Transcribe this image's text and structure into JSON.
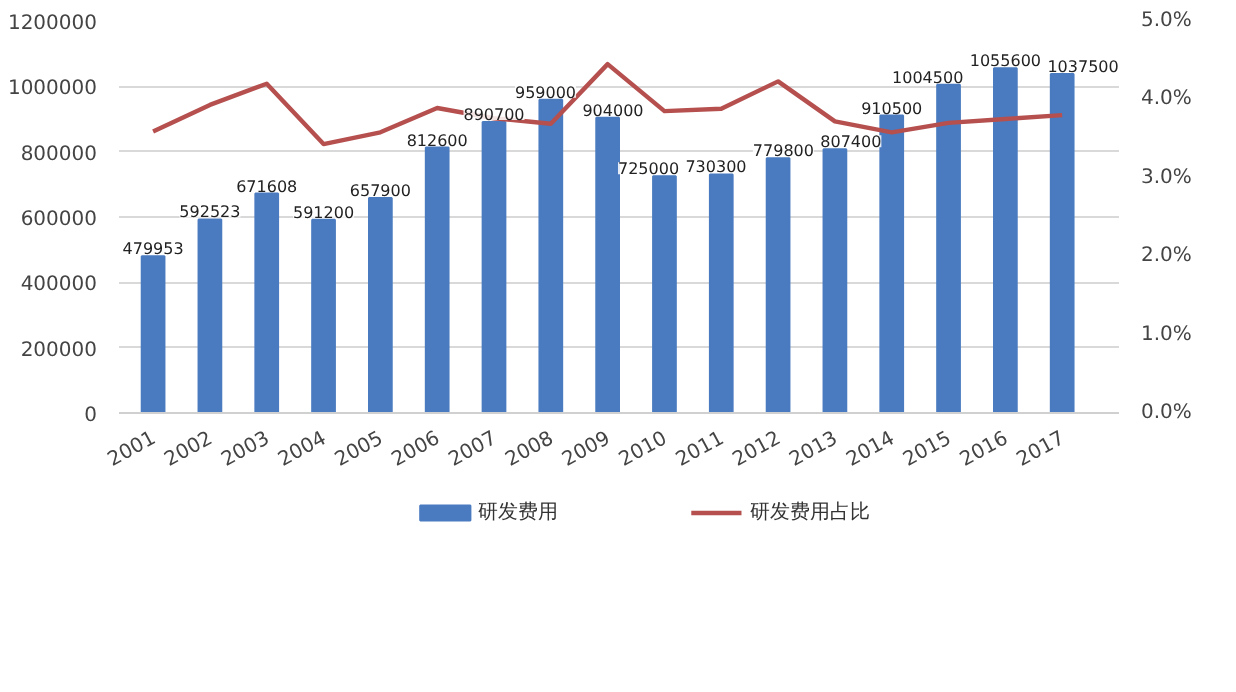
{
  "chart_data": {
    "type": "bar",
    "categories": [
      "2001",
      "2002",
      "2003",
      "2004",
      "2005",
      "2006",
      "2007",
      "2008",
      "2009",
      "2010",
      "2011",
      "2012",
      "2013",
      "2014",
      "2015",
      "2016",
      "2017"
    ],
    "series": [
      {
        "name": "研发费用",
        "color": "#4a7bc0",
        "values": [
          479953,
          592523,
          671608,
          591200,
          657900,
          812600,
          890700,
          959000,
          904000,
          725000,
          730300,
          779800,
          807400,
          910500,
          1004500,
          1055600,
          1037500
        ],
        "value_labels": [
          "479953",
          "592523",
          "671608",
          "591200",
          "657900",
          "812600",
          "890700",
          "959000",
          "904000",
          "725000",
          "730300",
          "779800",
          "807400",
          "910500",
          "1004500",
          "1055600",
          "1037500"
        ]
      },
      {
        "name": "研发费用占比",
        "type": "line",
        "axis": "y2",
        "color": "#b5504f",
        "values": [
          3.59,
          3.93,
          4.2,
          3.43,
          3.58,
          3.89,
          3.76,
          3.69,
          4.45,
          3.85,
          3.88,
          4.23,
          3.72,
          3.58,
          3.7,
          3.75,
          3.8
        ]
      }
    ],
    "ylim": [
      0,
      1200000
    ],
    "yticks": [
      0,
      200000,
      400000,
      600000,
      800000,
      1000000,
      1200000
    ],
    "y2lim": [
      0,
      5
    ],
    "y2ticks": [
      {
        "value": 0,
        "label": "0.0%"
      },
      {
        "value": 1,
        "label": "1.0%"
      },
      {
        "value": 2,
        "label": "2.0%"
      },
      {
        "value": 3,
        "label": "3.0%"
      },
      {
        "value": 4,
        "label": "4.0%"
      },
      {
        "value": 5,
        "label": "5.0%"
      }
    ],
    "grid": "y",
    "legend": "bottom"
  }
}
